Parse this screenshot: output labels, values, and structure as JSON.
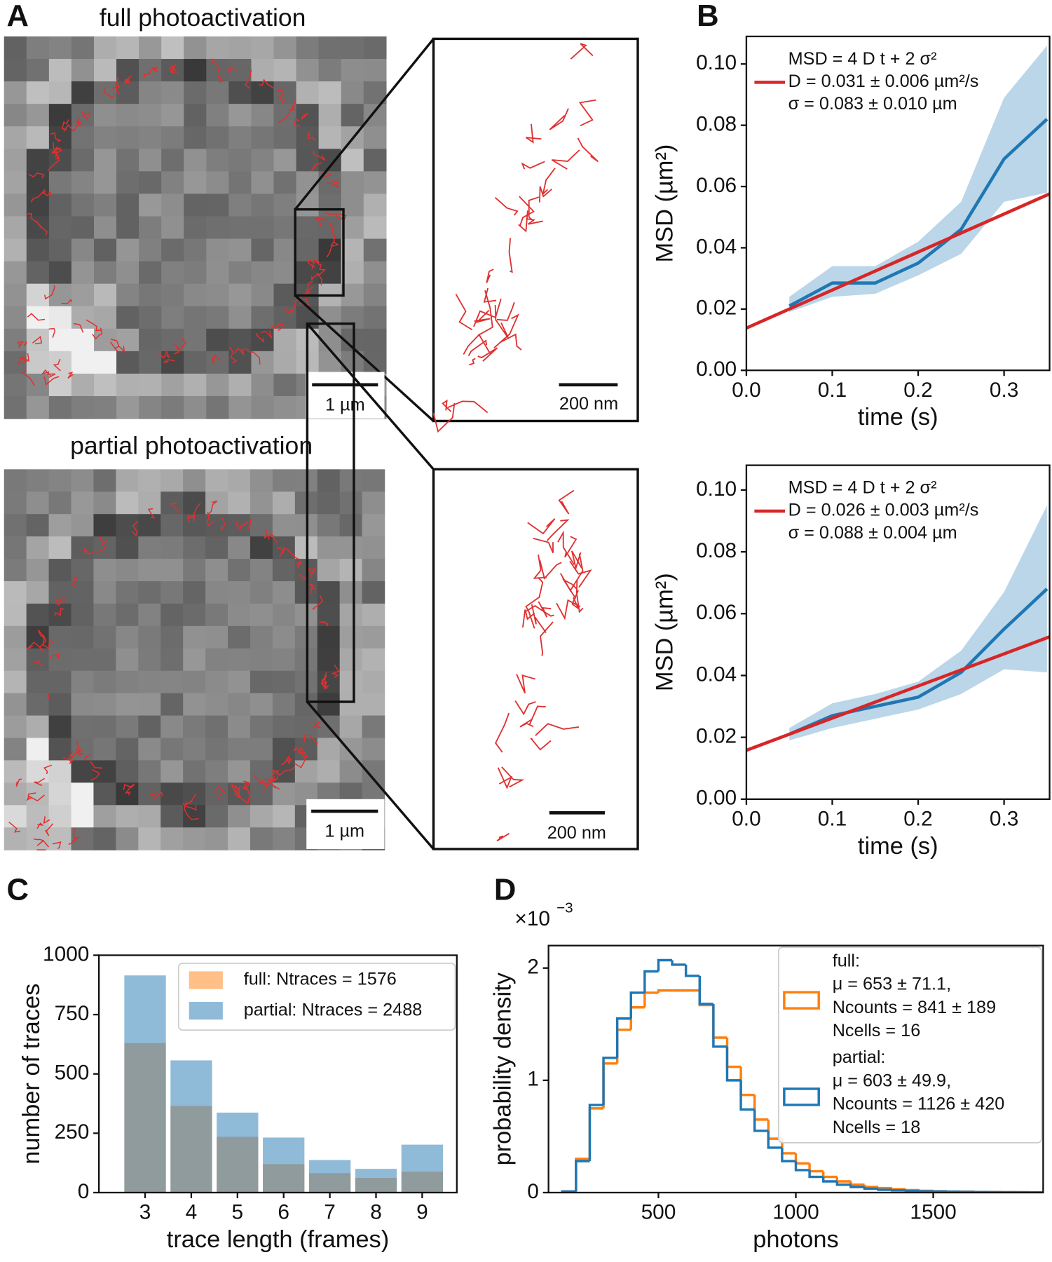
{
  "panel_labels": [
    "A",
    "B",
    "C",
    "D"
  ],
  "images": [
    {
      "title": "full photoactivation",
      "scale_bar": "1 µm",
      "zoom_scale_bar": "200 nm"
    },
    {
      "title": "partial photoactivation",
      "scale_bar": "1 µm",
      "zoom_scale_bar": "200 nm"
    }
  ],
  "chart_data": [
    {
      "type": "line",
      "xlabel": "time (s)",
      "ylabel": "MSD (µm²)",
      "x": [
        0.05,
        0.1,
        0.15,
        0.2,
        0.25,
        0.3,
        0.35
      ],
      "series": [
        {
          "color": "#1f77b4",
          "band_color": "#1f77b4",
          "values": [
            0.021,
            0.0285,
            0.0285,
            0.035,
            0.046,
            0.069,
            0.082
          ],
          "lower": [
            0.019,
            0.024,
            0.025,
            0.031,
            0.038,
            0.055,
            0.058
          ],
          "upper": [
            0.024,
            0.034,
            0.034,
            0.042,
            0.055,
            0.089,
            0.106
          ]
        }
      ],
      "fit": {
        "color": "#d62728",
        "x": [
          0,
          0.353
        ],
        "values": [
          0.0138,
          0.0576
        ]
      },
      "legend_text": [
        "MSD = 4 D t + 2 σ²",
        "D = 0.031 ± 0.006 µm²/s",
        "σ = 0.083 ± 0.010 µm"
      ],
      "xlim": [
        0,
        0.353
      ],
      "ylim": [
        0,
        0.109
      ],
      "xticks": [
        {
          "value": 0,
          "label": "0.0"
        },
        0.1,
        0.2,
        0.3
      ],
      "yticks": [
        {
          "value": 0,
          "label": "0.00"
        },
        0.02,
        0.04,
        0.06,
        0.08,
        {
          "value": 0.1,
          "label": "0.10"
        }
      ]
    },
    {
      "type": "line",
      "xlabel": "time (s)",
      "ylabel": "MSD (µm²)",
      "x": [
        0.05,
        0.1,
        0.15,
        0.2,
        0.25,
        0.3,
        0.35
      ],
      "series": [
        {
          "color": "#1f77b4",
          "band_color": "#1f77b4",
          "values": [
            0.021,
            0.027,
            0.03,
            0.033,
            0.041,
            0.055,
            0.068
          ],
          "lower": [
            0.019,
            0.023,
            0.026,
            0.029,
            0.034,
            0.042,
            0.041
          ],
          "upper": [
            0.023,
            0.031,
            0.034,
            0.038,
            0.048,
            0.067,
            0.095
          ]
        }
      ],
      "fit": {
        "color": "#d62728",
        "x": [
          0,
          0.353
        ],
        "values": [
          0.0158,
          0.0525
        ]
      },
      "legend_text": [
        "MSD = 4 D t + 2 σ²",
        "D = 0.026 ± 0.003 µm²/s",
        "σ = 0.088 ± 0.004 µm"
      ],
      "xlim": [
        0,
        0.353
      ],
      "ylim": [
        0,
        0.108
      ],
      "xticks": [
        {
          "value": 0,
          "label": "0.0"
        },
        0.1,
        0.2,
        0.3
      ],
      "yticks": [
        {
          "value": 0,
          "label": "0.00"
        },
        0.02,
        0.04,
        0.06,
        0.08,
        {
          "value": 0.1,
          "label": "0.10"
        }
      ]
    },
    {
      "type": "bar",
      "xlabel": "trace length (frames)",
      "ylabel": "number of traces",
      "categories": [
        "3",
        "4",
        "5",
        "6",
        "7",
        "8",
        "9"
      ],
      "opacity": 0.5,
      "series": [
        {
          "name": "full: Ntraces = 1576",
          "color": "#ff7f0e",
          "values": [
            630,
            365,
            235,
            120,
            82,
            62,
            88
          ]
        },
        {
          "name": "partial: Ntraces = 2488",
          "color": "#1f77b4",
          "values": [
            915,
            557,
            337,
            232,
            137,
            100,
            202
          ]
        }
      ],
      "ylim": [
        0,
        1000
      ],
      "yticks": [
        0,
        250,
        500,
        750,
        1000
      ]
    },
    {
      "type": "step_histogram",
      "xlabel": "photons",
      "ylabel": "probability density",
      "y_multiplier": "×10",
      "y_multiplier_exponent": "−3",
      "bins": [
        150,
        200,
        250,
        300,
        350,
        400,
        450,
        500,
        550,
        600,
        650,
        700,
        750,
        800,
        850,
        900,
        950,
        1000,
        1050,
        1100,
        1150,
        1200,
        1250,
        1300,
        1350,
        1400,
        1450,
        1500,
        1550,
        1600,
        1650,
        1700,
        1750,
        1800,
        1850,
        1900
      ],
      "series": [
        {
          "name": "full:",
          "legend_lines": [
            "μ = 653 ± 71.1,",
            "Ncounts = 841 ± 189",
            "Ncells = 16"
          ],
          "color": "#ff7f0e",
          "values": [
            0.0,
            0.3,
            0.75,
            1.15,
            1.45,
            1.65,
            1.78,
            1.8,
            1.8,
            1.8,
            1.67,
            1.38,
            1.12,
            0.87,
            0.65,
            0.48,
            0.35,
            0.26,
            0.19,
            0.14,
            0.1,
            0.07,
            0.05,
            0.04,
            0.03,
            0.022,
            0.016,
            0.012,
            0.009,
            0.007,
            0.005,
            0.004,
            0.003,
            0.002,
            0.002
          ]
        },
        {
          "name": "partial:",
          "legend_lines": [
            "μ = 603 ± 49.9,",
            "Ncounts = 1126 ± 420",
            "Ncells = 18"
          ],
          "color": "#1f77b4",
          "values": [
            0.01,
            0.28,
            0.78,
            1.2,
            1.55,
            1.78,
            1.97,
            2.07,
            2.03,
            1.93,
            1.68,
            1.3,
            1.0,
            0.74,
            0.55,
            0.4,
            0.28,
            0.2,
            0.14,
            0.1,
            0.07,
            0.05,
            0.035,
            0.025,
            0.02,
            0.015,
            0.012,
            0.01,
            0.008,
            0.006,
            0.005,
            0.004,
            0.003,
            0.003,
            0.002
          ]
        }
      ],
      "xlim": [
        100,
        1900
      ],
      "ylim": [
        0,
        2.2
      ],
      "xticks": [
        500,
        1000,
        1500
      ],
      "yticks": [
        0,
        1,
        2
      ]
    }
  ]
}
